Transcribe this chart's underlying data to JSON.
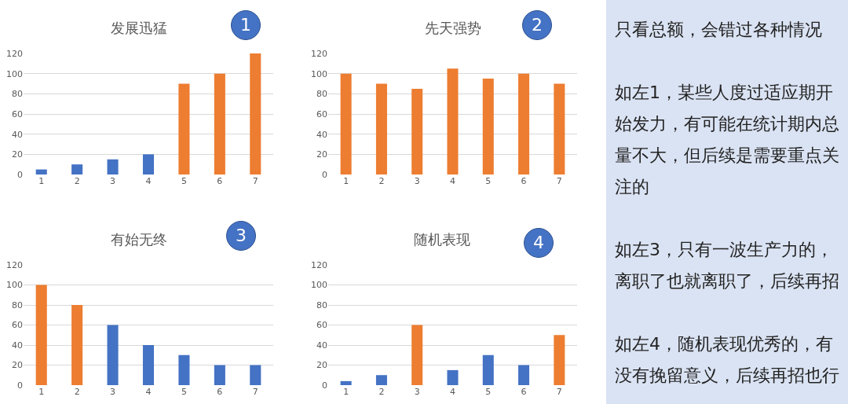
{
  "chart_data": [
    {
      "type": "bar",
      "title": "发展迅猛",
      "annotations": [
        "1"
      ],
      "categories": [
        "1",
        "2",
        "3",
        "4",
        "5",
        "6",
        "7"
      ],
      "values": [
        5,
        10,
        15,
        20,
        90,
        100,
        120
      ],
      "colors": [
        "#4472c4",
        "#4472c4",
        "#4472c4",
        "#4472c4",
        "#ed7d31",
        "#ed7d31",
        "#ed7d31"
      ],
      "ylim": [
        0,
        120
      ],
      "yticks": [
        0,
        20,
        40,
        60,
        80,
        100,
        120
      ],
      "grid": "y"
    },
    {
      "type": "bar",
      "title": "先天强势",
      "annotations": [
        "2"
      ],
      "categories": [
        "1",
        "2",
        "3",
        "4",
        "5",
        "6",
        "7"
      ],
      "values": [
        100,
        90,
        85,
        105,
        95,
        100,
        90
      ],
      "colors": [
        "#ed7d31",
        "#ed7d31",
        "#ed7d31",
        "#ed7d31",
        "#ed7d31",
        "#ed7d31",
        "#ed7d31"
      ],
      "ylim": [
        0,
        120
      ],
      "yticks": [
        0,
        20,
        40,
        60,
        80,
        100,
        120
      ],
      "grid": "y"
    },
    {
      "type": "bar",
      "title": "有始无终",
      "annotations": [
        "3"
      ],
      "categories": [
        "1",
        "2",
        "3",
        "4",
        "5",
        "6",
        "7"
      ],
      "values": [
        100,
        80,
        60,
        40,
        30,
        20,
        20
      ],
      "colors": [
        "#ed7d31",
        "#ed7d31",
        "#4472c4",
        "#4472c4",
        "#4472c4",
        "#4472c4",
        "#4472c4"
      ],
      "ylim": [
        0,
        120
      ],
      "yticks": [
        0,
        20,
        40,
        60,
        80,
        100,
        120
      ],
      "grid": "y"
    },
    {
      "type": "bar",
      "title": "随机表现",
      "annotations": [
        "4"
      ],
      "categories": [
        "1",
        "2",
        "3",
        "4",
        "5",
        "6",
        "7"
      ],
      "values": [
        4,
        10,
        60,
        15,
        30,
        20,
        50
      ],
      "colors": [
        "#4472c4",
        "#4472c4",
        "#ed7d31",
        "#4472c4",
        "#4472c4",
        "#4472c4",
        "#ed7d31"
      ],
      "ylim": [
        0,
        120
      ],
      "yticks": [
        0,
        20,
        40,
        60,
        80,
        100,
        120
      ],
      "grid": "y"
    },
    {
      "type": "other",
      "annotations": [
        "只看总额，会错过各种情况",
        "如左1，某些人度过适应期开始发力，有可能在统计期内总量不大，但后续是需要重点关注的",
        "如左3，只有一波生产力的，离职了也就离职了，后续再招",
        "如左4，随机表现优秀的，有没有挽留意义，后续再招也行"
      ]
    }
  ]
}
